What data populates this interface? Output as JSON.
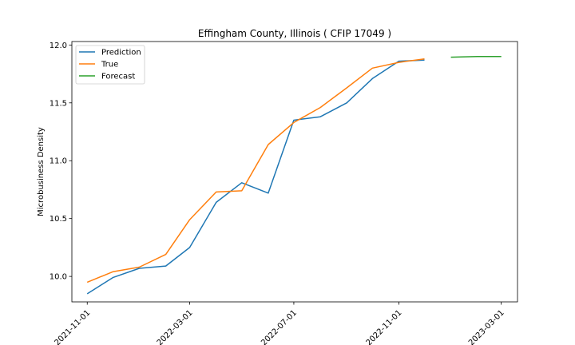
{
  "chart_data": {
    "type": "line",
    "title": "Effingham County, Illinois ( CFIP 17049 )",
    "xlabel": "",
    "ylabel": "Microbusiness Density",
    "xlim": [
      "2021-10-14",
      "2023-03-20"
    ],
    "ylim": [
      9.78,
      12.03
    ],
    "x_ticks": [
      "2021-11-01",
      "2022-03-01",
      "2022-07-01",
      "2022-11-01",
      "2023-03-01"
    ],
    "y_ticks": [
      10.0,
      10.5,
      11.0,
      11.5,
      12.0
    ],
    "y_tick_labels": [
      "10.0",
      "10.5",
      "11.0",
      "11.5",
      "12.0"
    ],
    "grid": false,
    "legend_position": "top-left",
    "series": [
      {
        "name": "Prediction",
        "color": "#1f77b4",
        "points": [
          [
            "2021-11-01",
            9.85
          ],
          [
            "2021-12-01",
            9.99
          ],
          [
            "2022-01-01",
            10.07
          ],
          [
            "2022-02-01",
            10.09
          ],
          [
            "2022-03-01",
            10.25
          ],
          [
            "2022-04-01",
            10.64
          ],
          [
            "2022-05-01",
            10.81
          ],
          [
            "2022-06-01",
            10.72
          ],
          [
            "2022-07-01",
            11.35
          ],
          [
            "2022-08-01",
            11.38
          ],
          [
            "2022-09-01",
            11.5
          ],
          [
            "2022-10-01",
            11.71
          ],
          [
            "2022-11-01",
            11.86
          ],
          [
            "2022-12-01",
            11.87
          ]
        ]
      },
      {
        "name": "True",
        "color": "#ff7f0e",
        "points": [
          [
            "2021-11-01",
            9.95
          ],
          [
            "2021-12-01",
            10.04
          ],
          [
            "2022-01-01",
            10.08
          ],
          [
            "2022-02-01",
            10.19
          ],
          [
            "2022-03-01",
            10.49
          ],
          [
            "2022-04-01",
            10.73
          ],
          [
            "2022-05-01",
            10.74
          ],
          [
            "2022-06-01",
            11.14
          ],
          [
            "2022-07-01",
            11.33
          ],
          [
            "2022-08-01",
            11.46
          ],
          [
            "2022-09-01",
            11.63
          ],
          [
            "2022-10-01",
            11.8
          ],
          [
            "2022-11-01",
            11.85
          ],
          [
            "2022-12-01",
            11.88
          ]
        ]
      },
      {
        "name": "Forecast",
        "color": "#2ca02c",
        "points": [
          [
            "2023-01-01",
            11.895
          ],
          [
            "2023-02-01",
            11.9
          ],
          [
            "2023-03-01",
            11.9
          ]
        ]
      }
    ]
  }
}
